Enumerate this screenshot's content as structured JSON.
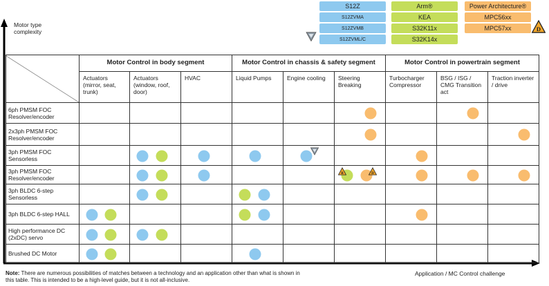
{
  "colors": {
    "blue": "#8ec9ef",
    "green": "#c4dd5a",
    "orange": "#f9bc6e"
  },
  "legend": {
    "blue": [
      "S12Z",
      "S12ZVMA",
      "S12ZVMB",
      "S12ZVML/C"
    ],
    "green": [
      "Arm®",
      "KEA",
      "S32K11x",
      "S32K14x"
    ],
    "orange": [
      "Power Architecture®",
      "MPC56xx",
      "MPC57xx"
    ],
    "icons": [
      "v-shield-icon",
      "warning-triangle-d-icon"
    ]
  },
  "axes": {
    "y_label": "Motor type complexity",
    "x_label": "Application / MC Control challenge"
  },
  "groups": [
    "Motor Control in body segment",
    "Motor Control in chassis & safety segment",
    "Motor Control in powertrain segment"
  ],
  "columns": [
    "Actuators (mirror, seat, trunk)",
    "Actuators (window, roof, door)",
    "HVAC",
    "Liquid Pumps",
    "Engine cooling",
    "Steering Breaking",
    "Turbocharger Compressor",
    "BSG / ISG / CMG Transition act",
    "Traction inverter / drive"
  ],
  "rows": [
    "6ph PMSM FOC Resolver/encoder",
    "2x3ph PMSM FOC Resolver/encoder",
    "3ph PMSM FOC Sensorless",
    "3ph PMSM FOC Resolver/encoder",
    "3ph BLDC 6-step Sensorless",
    "3ph BLDC 6-step HALL",
    "High performance DC (2xDC) servo",
    "Brushed DC Motor"
  ],
  "matches": [
    {
      "row": 0,
      "col": 5,
      "family": "orange"
    },
    {
      "row": 0,
      "col": 7,
      "family": "orange"
    },
    {
      "row": 1,
      "col": 5,
      "family": "orange"
    },
    {
      "row": 1,
      "col": 8,
      "family": "orange"
    },
    {
      "row": 2,
      "col": 1,
      "family": "blue"
    },
    {
      "row": 2,
      "col": 1,
      "family": "green"
    },
    {
      "row": 2,
      "col": 2,
      "family": "blue"
    },
    {
      "row": 2,
      "col": 3,
      "family": "blue"
    },
    {
      "row": 2,
      "col": 4,
      "family": "blue",
      "badge": "V"
    },
    {
      "row": 2,
      "col": 6,
      "family": "orange"
    },
    {
      "row": 3,
      "col": 1,
      "family": "blue"
    },
    {
      "row": 3,
      "col": 1,
      "family": "green"
    },
    {
      "row": 3,
      "col": 2,
      "family": "blue"
    },
    {
      "row": 3,
      "col": 5,
      "family": "green",
      "badge": "B"
    },
    {
      "row": 3,
      "col": 5,
      "family": "orange",
      "badge": "D"
    },
    {
      "row": 3,
      "col": 6,
      "family": "orange"
    },
    {
      "row": 3,
      "col": 7,
      "family": "orange"
    },
    {
      "row": 3,
      "col": 8,
      "family": "orange"
    },
    {
      "row": 4,
      "col": 1,
      "family": "blue"
    },
    {
      "row": 4,
      "col": 1,
      "family": "green"
    },
    {
      "row": 4,
      "col": 3,
      "family": "green"
    },
    {
      "row": 4,
      "col": 3,
      "family": "blue"
    },
    {
      "row": 5,
      "col": 0,
      "family": "blue"
    },
    {
      "row": 5,
      "col": 0,
      "family": "green"
    },
    {
      "row": 5,
      "col": 3,
      "family": "green"
    },
    {
      "row": 5,
      "col": 3,
      "family": "blue"
    },
    {
      "row": 5,
      "col": 6,
      "family": "orange"
    },
    {
      "row": 6,
      "col": 0,
      "family": "blue"
    },
    {
      "row": 6,
      "col": 0,
      "family": "green"
    },
    {
      "row": 6,
      "col": 1,
      "family": "blue"
    },
    {
      "row": 6,
      "col": 1,
      "family": "green"
    },
    {
      "row": 7,
      "col": 0,
      "family": "blue"
    },
    {
      "row": 7,
      "col": 0,
      "family": "green"
    },
    {
      "row": 7,
      "col": 3,
      "family": "blue"
    }
  ],
  "note": {
    "label": "Note:",
    "text": "There are numerous possibilities of matches between a technology and an application other than what is shown in this table. This is intended to be a high-level guide, but it is not all-inclusive."
  }
}
